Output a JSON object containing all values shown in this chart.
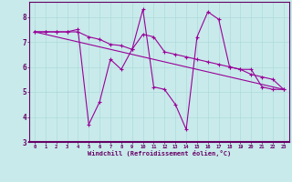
{
  "line1_x": [
    0,
    1,
    2,
    3,
    4,
    5,
    6,
    7,
    8,
    9,
    10,
    11,
    12,
    13,
    14,
    15,
    16,
    17,
    18,
    19,
    20,
    21,
    22,
    23
  ],
  "line1_y": [
    7.4,
    7.4,
    7.4,
    7.4,
    7.5,
    3.7,
    4.6,
    6.3,
    5.9,
    6.7,
    8.3,
    5.2,
    5.1,
    4.5,
    3.5,
    7.2,
    8.2,
    7.9,
    6.0,
    5.9,
    5.9,
    5.2,
    5.1,
    5.1
  ],
  "line2_x": [
    0,
    1,
    2,
    3,
    4,
    5,
    6,
    7,
    8,
    9,
    10,
    11,
    12,
    13,
    14,
    15,
    16,
    17,
    18,
    19,
    20,
    21,
    22,
    23
  ],
  "line2_y": [
    7.4,
    7.4,
    7.4,
    7.4,
    7.4,
    7.2,
    7.1,
    6.9,
    6.85,
    6.7,
    7.3,
    7.2,
    6.6,
    6.5,
    6.4,
    6.3,
    6.2,
    6.1,
    6.0,
    5.9,
    5.7,
    5.6,
    5.5,
    5.1
  ],
  "line3_x": [
    0,
    23
  ],
  "line3_y": [
    7.4,
    5.1
  ],
  "line_color": "#990099",
  "bg_color": "#c8eaea",
  "xlabel": "Windchill (Refroidissement éolien,°C)",
  "ylim": [
    3.0,
    8.6
  ],
  "xlim": [
    -0.5,
    23.5
  ],
  "yticks": [
    3,
    4,
    5,
    6,
    7,
    8
  ],
  "xticks": [
    0,
    1,
    2,
    3,
    4,
    5,
    6,
    7,
    8,
    9,
    10,
    11,
    12,
    13,
    14,
    15,
    16,
    17,
    18,
    19,
    20,
    21,
    22,
    23
  ]
}
